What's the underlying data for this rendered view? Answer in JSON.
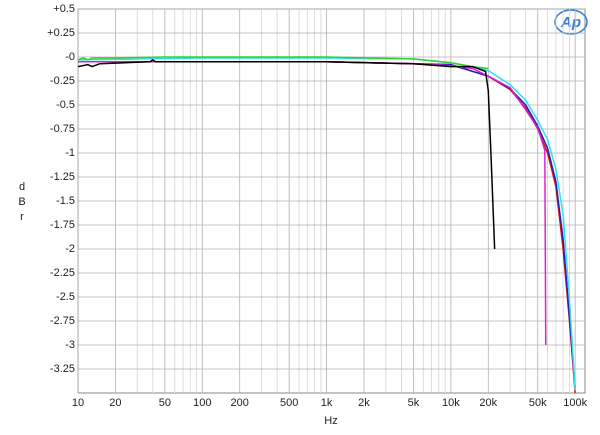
{
  "chart_data": {
    "type": "line",
    "logo": "Ap",
    "x_label": "Hz",
    "y_label": "dBr",
    "x_log": true,
    "grid": true,
    "xlim": [
      10,
      120000
    ],
    "ylim": [
      -3.5,
      0.5
    ],
    "xticks": [
      10,
      20,
      50,
      100,
      200,
      500,
      {
        "value": 1000,
        "label": "1k"
      },
      {
        "value": 2000,
        "label": "2k"
      },
      {
        "value": 5000,
        "label": "5k"
      },
      {
        "value": 10000,
        "label": "10k"
      },
      {
        "value": 20000,
        "label": "20k"
      },
      {
        "value": 50000,
        "label": "50k"
      },
      {
        "value": 100000,
        "label": "100k"
      }
    ],
    "x_minor_ticks": [
      30,
      40,
      60,
      70,
      80,
      90,
      300,
      400,
      600,
      700,
      800,
      900,
      3000,
      4000,
      6000,
      7000,
      8000,
      9000,
      30000,
      40000,
      60000,
      70000,
      80000,
      90000
    ],
    "yticks": [
      {
        "value": 0.5,
        "label": "+0.5"
      },
      {
        "value": 0.25,
        "label": "+0.25"
      },
      {
        "value": 0,
        "label": "-0"
      },
      -0.25,
      -0.5,
      -0.75,
      -1,
      -1.25,
      -1.5,
      -1.75,
      -2,
      -2.25,
      -2.5,
      -2.75,
      -3,
      -3.25
    ],
    "series": [
      {
        "color": "#e01010",
        "x": [
          10,
          100,
          1000,
          10000,
          20000,
          30000,
          40000,
          50000,
          60000,
          70000,
          80000,
          90000,
          100000
        ],
        "values": [
          -0.05,
          -0.05,
          -0.05,
          -0.08,
          -0.2,
          -0.34,
          -0.53,
          -0.75,
          -1.0,
          -1.35,
          -2.0,
          -2.75,
          -3.5
        ]
      },
      {
        "color": "#2020c0",
        "x": [
          10,
          100,
          1000,
          10000,
          20000,
          30000,
          40000,
          50000,
          60000,
          70000,
          80000,
          90000,
          100000
        ],
        "values": [
          -0.05,
          -0.05,
          -0.05,
          -0.08,
          -0.2,
          -0.33,
          -0.5,
          -0.72,
          -0.95,
          -1.3,
          -1.9,
          -2.7,
          -3.45
        ]
      },
      {
        "color": "#30e0e8",
        "x": [
          10,
          100,
          1000,
          5000,
          10000,
          20000,
          30000,
          40000,
          50000,
          60000,
          70000,
          80000,
          90000,
          100000
        ],
        "values": [
          -0.03,
          -0.01,
          -0.01,
          -0.02,
          -0.06,
          -0.14,
          -0.29,
          -0.45,
          -0.66,
          -0.86,
          -1.17,
          -1.64,
          -2.53,
          -3.47
        ]
      },
      {
        "color": "#e020d0",
        "x": [
          10,
          100,
          1000,
          5000,
          10000,
          15000,
          20000,
          30000,
          40000,
          50000,
          57000,
          58000
        ],
        "values": [
          -0.05,
          -0.05,
          -0.05,
          -0.07,
          -0.09,
          -0.12,
          -0.2,
          -0.32,
          -0.55,
          -0.74,
          -0.97,
          -3.0
        ]
      },
      {
        "color": "#30d030",
        "x": [
          10,
          11,
          12,
          13,
          20,
          50,
          100,
          1000,
          5000,
          10000,
          15000,
          20000
        ],
        "values": [
          -0.03,
          -0.01,
          -0.03,
          -0.01,
          -0.01,
          0,
          0,
          0,
          -0.02,
          -0.06,
          -0.1,
          -0.12
        ]
      },
      {
        "color": "#000000",
        "x": [
          10,
          12,
          13,
          15,
          38,
          40,
          42,
          100,
          1000,
          5000,
          10000,
          15000,
          19000,
          20000,
          21000,
          22500
        ],
        "values": [
          -0.1,
          -0.08,
          -0.1,
          -0.07,
          -0.05,
          -0.03,
          -0.05,
          -0.05,
          -0.05,
          -0.07,
          -0.1,
          -0.1,
          -0.15,
          -0.35,
          -1.0,
          -2.0
        ]
      }
    ]
  }
}
